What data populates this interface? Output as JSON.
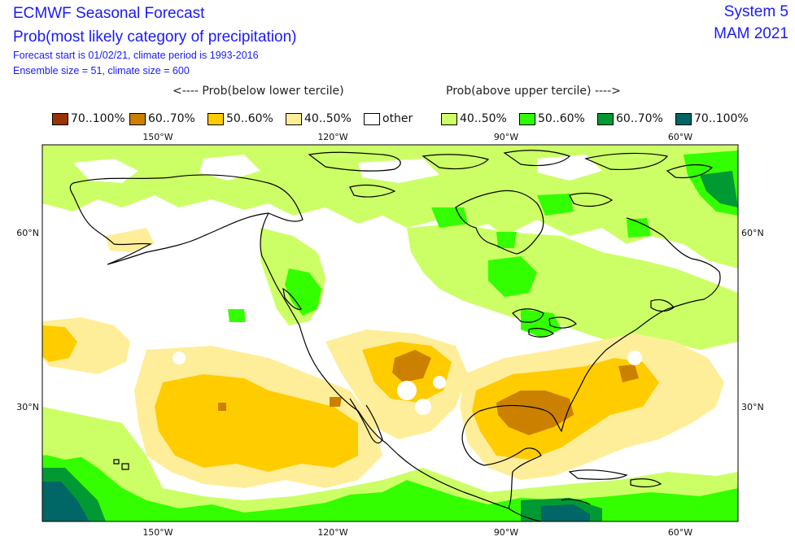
{
  "header": {
    "title": "ECMWF Seasonal Forecast",
    "subtitle": "Prob(most likely category of precipitation)",
    "forecast_info": "Forecast start is 01/02/21, climate period is 1993-2016",
    "ensemble_info": "Ensemble size = 51, climate size = 600",
    "system": "System 5",
    "season": "MAM 2021"
  },
  "legend": {
    "below_label": "<---- Prob(below lower tercile)",
    "above_label": "Prob(above upper tercile) ---->",
    "items": [
      {
        "label": "70..100%",
        "color": "#993300"
      },
      {
        "label": "60..70%",
        "color": "#cc8000"
      },
      {
        "label": "50..60%",
        "color": "#ffcc00"
      },
      {
        "label": "40..50%",
        "color": "#ffee99"
      },
      {
        "label": "other",
        "color": "#ffffff"
      },
      {
        "label": "40..50%",
        "color": "#ccff66"
      },
      {
        "label": "50..60%",
        "color": "#33ff00"
      },
      {
        "label": "60..70%",
        "color": "#009933"
      },
      {
        "label": "70..100%",
        "color": "#006666"
      }
    ]
  },
  "map": {
    "lon_ticks": [
      "150°W",
      "120°W",
      "90°W",
      "60°W"
    ],
    "lat_ticks": [
      "60°N",
      "30°N"
    ]
  }
}
